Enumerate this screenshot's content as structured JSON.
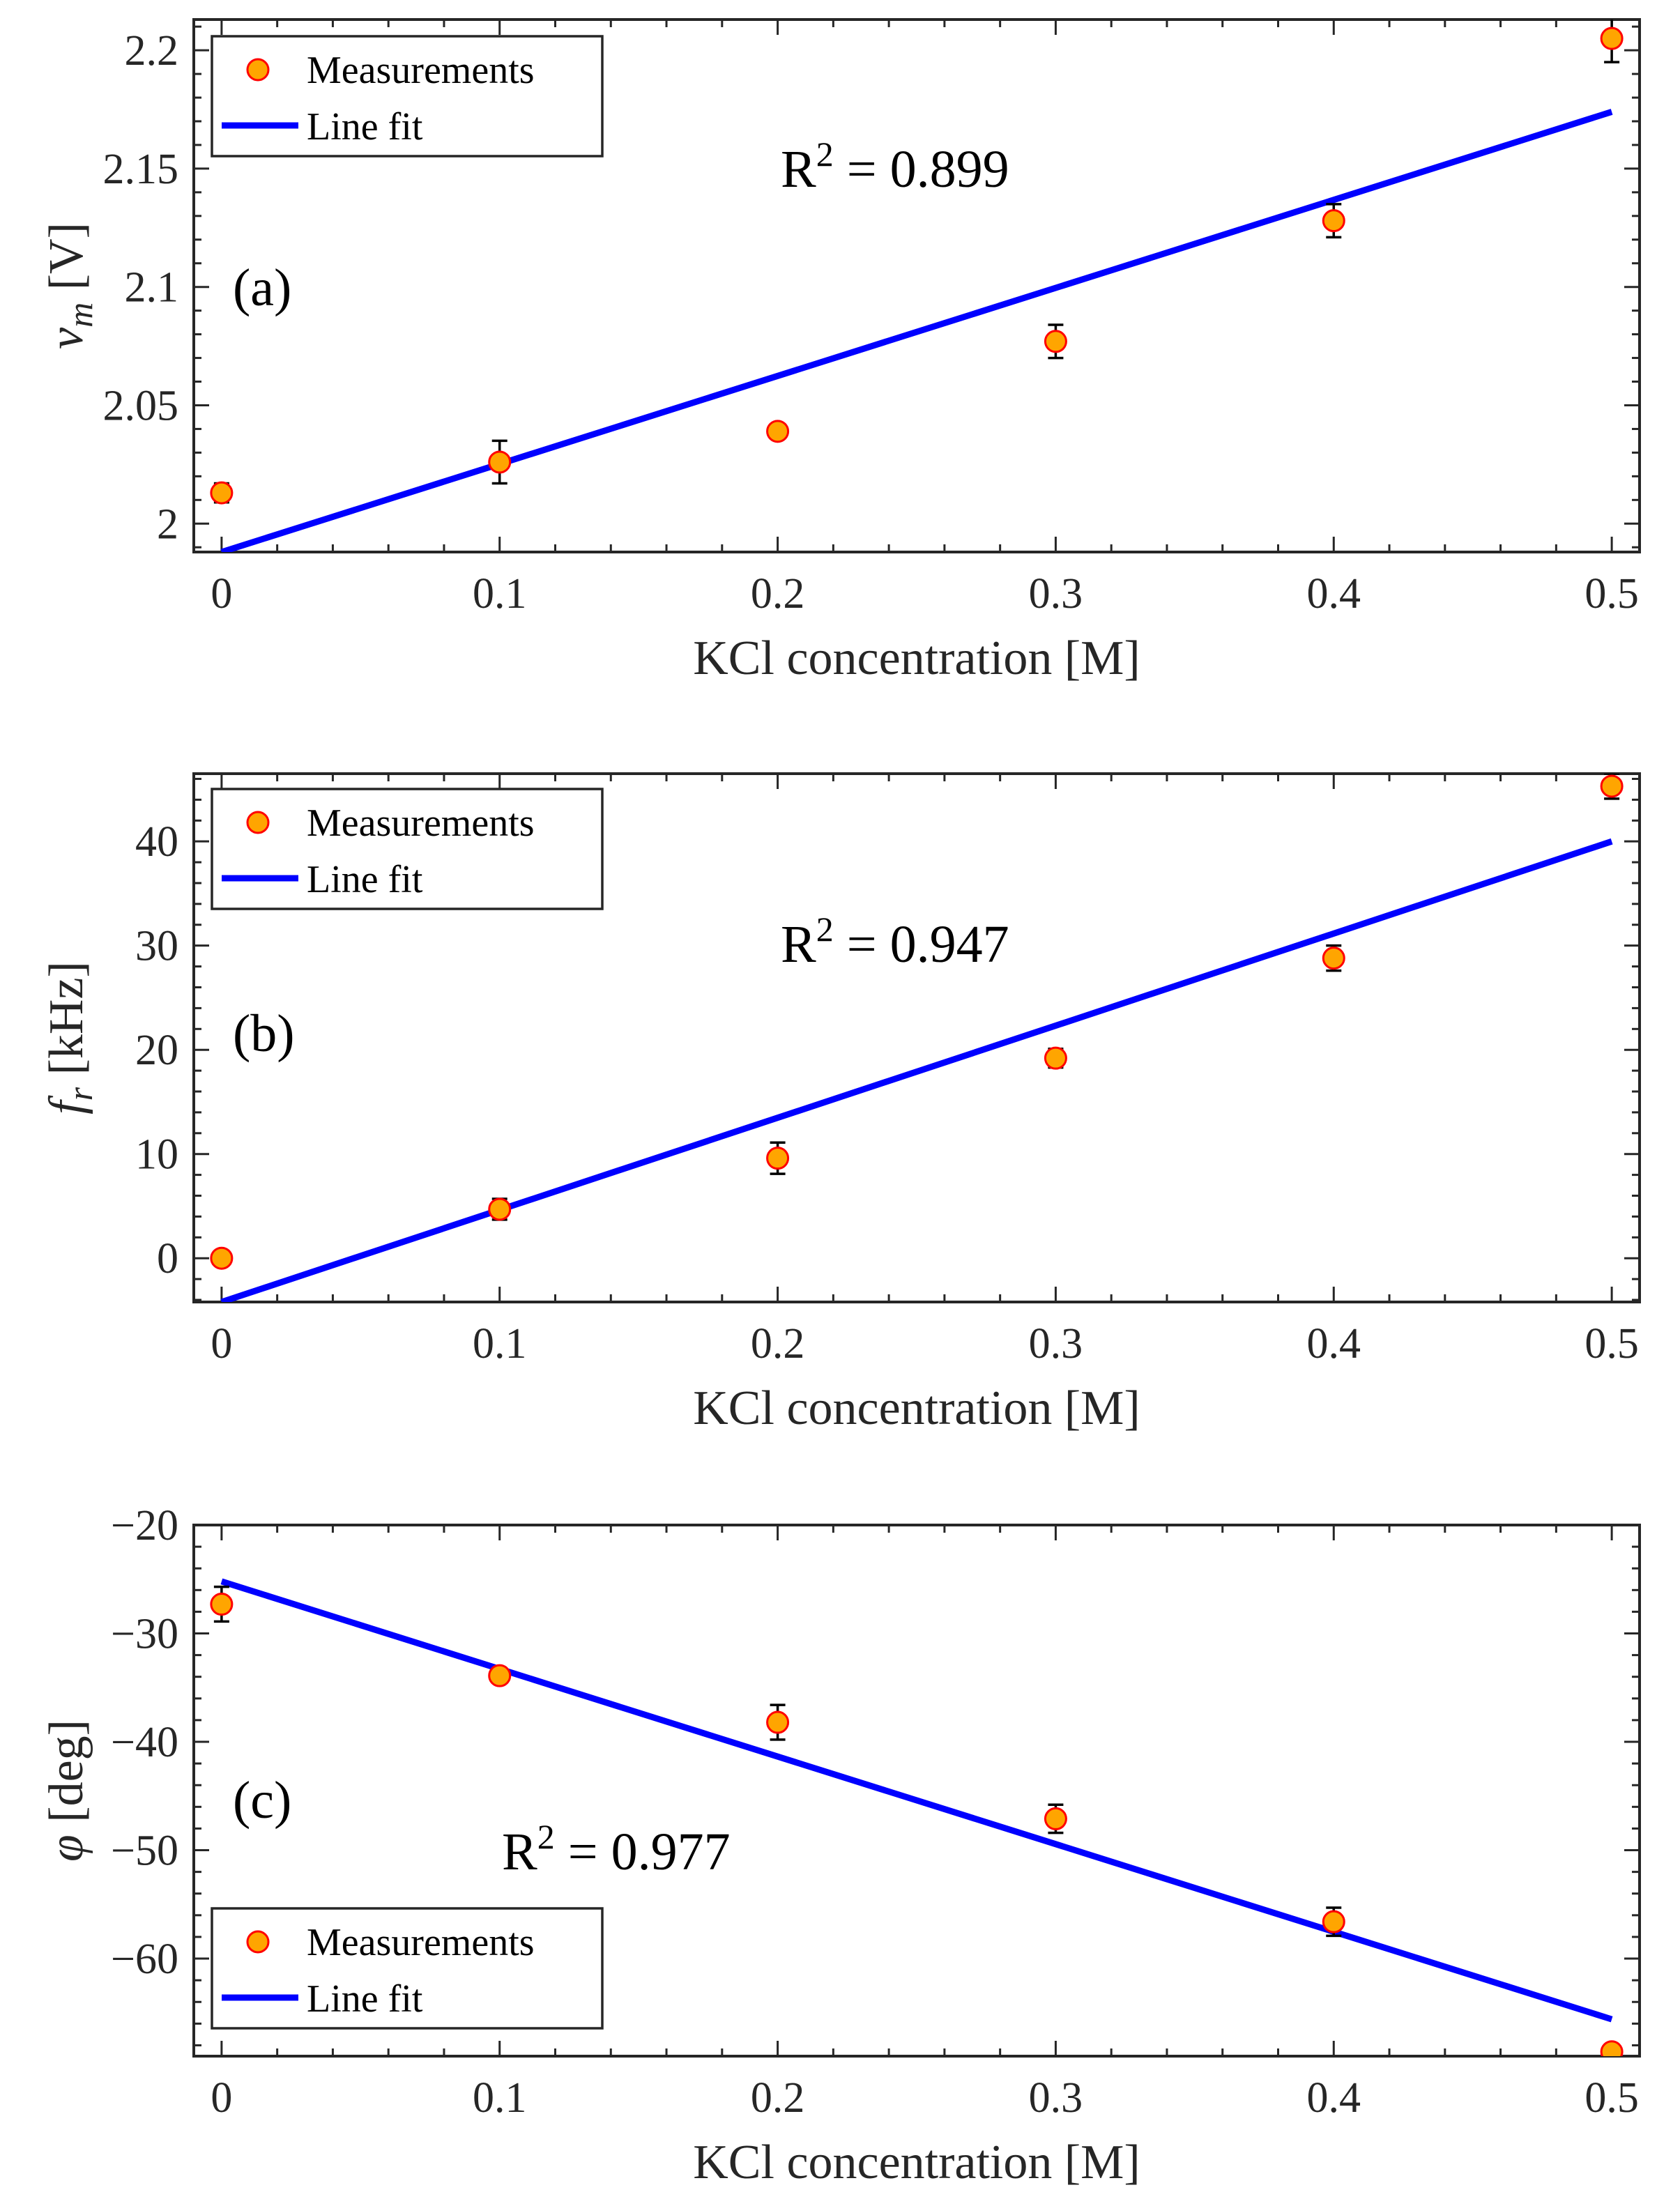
{
  "chart_data": [
    {
      "type": "scatter",
      "panel_label": "(a)",
      "xlabel": "KCl concentration [M]",
      "ylabel_symbol": "v",
      "ylabel_subscript": "m",
      "ylabel_unit": " [V]",
      "xlim": [
        -0.01,
        0.51
      ],
      "ylim": [
        1.988,
        2.213
      ],
      "xticks": [
        0,
        0.1,
        0.2,
        0.3,
        0.4,
        0.5
      ],
      "xtick_labels": [
        "0",
        "0.1",
        "0.2",
        "0.3",
        "0.4",
        "0.5"
      ],
      "yticks": [
        2.0,
        2.05,
        2.1,
        2.15,
        2.2
      ],
      "ytick_labels": [
        "2",
        "2.05",
        "2.1",
        "2.15",
        "2.2"
      ],
      "series": [
        {
          "name": "Measurements",
          "kind": "points",
          "x": [
            0,
            0.1,
            0.2,
            0.3,
            0.4,
            0.5
          ],
          "y": [
            2.013,
            2.026,
            2.039,
            2.077,
            2.128,
            2.205
          ],
          "err": [
            0.004,
            0.009,
            0.003,
            0.007,
            0.007,
            0.01
          ]
        },
        {
          "name": "Line fit",
          "kind": "line",
          "x": [
            0,
            0.5
          ],
          "y": [
            1.988,
            2.174
          ]
        }
      ],
      "legend_entries": [
        "Measurements",
        "Line fit"
      ],
      "legend_position": "top-left",
      "annotation_prefix": "R",
      "annotation_sup": "2",
      "annotation_value": " = 0.899",
      "colors": {
        "marker_fill": "#FFA500",
        "marker_edge": "#FF0000",
        "line": "#0000FF",
        "errorbar": "#000000"
      }
    },
    {
      "type": "scatter",
      "panel_label": "(b)",
      "xlabel": "KCl concentration [M]",
      "ylabel_symbol": "f",
      "ylabel_subscript": "r",
      "ylabel_unit": " [kHz]",
      "xlim": [
        -0.01,
        0.51
      ],
      "ylim": [
        -4.2,
        46.5
      ],
      "xticks": [
        0,
        0.1,
        0.2,
        0.3,
        0.4,
        0.5
      ],
      "xtick_labels": [
        "0",
        "0.1",
        "0.2",
        "0.3",
        "0.4",
        "0.5"
      ],
      "yticks": [
        0,
        10,
        20,
        30,
        40
      ],
      "ytick_labels": [
        "0",
        "10",
        "20",
        "30",
        "40"
      ],
      "series": [
        {
          "name": "Measurements",
          "kind": "points",
          "x": [
            0,
            0.1,
            0.2,
            0.3,
            0.4,
            0.5
          ],
          "y": [
            0,
            4.7,
            9.6,
            19.2,
            28.8,
            45.3
          ],
          "err": [
            0.6,
            1.0,
            1.5,
            0.9,
            1.2,
            1.2
          ]
        },
        {
          "name": "Line fit",
          "kind": "line",
          "x": [
            0,
            0.5
          ],
          "y": [
            -4.2,
            40.0
          ]
        }
      ],
      "legend_entries": [
        "Measurements",
        "Line fit"
      ],
      "legend_position": "top-left",
      "annotation_prefix": "R",
      "annotation_sup": "2",
      "annotation_value": " = 0.947",
      "colors": {
        "marker_fill": "#FFA500",
        "marker_edge": "#FF0000",
        "line": "#0000FF",
        "errorbar": "#000000"
      }
    },
    {
      "type": "scatter",
      "panel_label": "(c)",
      "xlabel": "KCl concentration [M]",
      "ylabel_symbol": "φ",
      "ylabel_subscript": "",
      "ylabel_unit": " [deg]",
      "xlim": [
        -0.01,
        0.51
      ],
      "ylim": [
        -69.0,
        -20.0
      ],
      "xticks": [
        0,
        0.1,
        0.2,
        0.3,
        0.4,
        0.5
      ],
      "xtick_labels": [
        "0",
        "0.1",
        "0.2",
        "0.3",
        "0.4",
        "0.5"
      ],
      "yticks": [
        -20,
        -30,
        -40,
        -50,
        -60
      ],
      "ytick_labels": [
        "−20",
        "−30",
        "−40",
        "−50",
        "−60"
      ],
      "series": [
        {
          "name": "Measurements",
          "kind": "points",
          "x": [
            0,
            0.1,
            0.2,
            0.3,
            0.4,
            0.5
          ],
          "y": [
            -27.3,
            -33.9,
            -38.2,
            -47.1,
            -56.6,
            -68.6
          ],
          "err": [
            1.6,
            0.6,
            1.6,
            1.3,
            1.3,
            0.4
          ]
        },
        {
          "name": "Line fit",
          "kind": "line",
          "x": [
            0,
            0.5
          ],
          "y": [
            -25.2,
            -65.6
          ]
        }
      ],
      "legend_entries": [
        "Measurements",
        "Line fit"
      ],
      "legend_position": "bottom-left",
      "annotation_prefix": "R",
      "annotation_sup": "2",
      "annotation_value": " = 0.977",
      "colors": {
        "marker_fill": "#FFA500",
        "marker_edge": "#FF0000",
        "line": "#0000FF",
        "errorbar": "#000000"
      }
    }
  ]
}
